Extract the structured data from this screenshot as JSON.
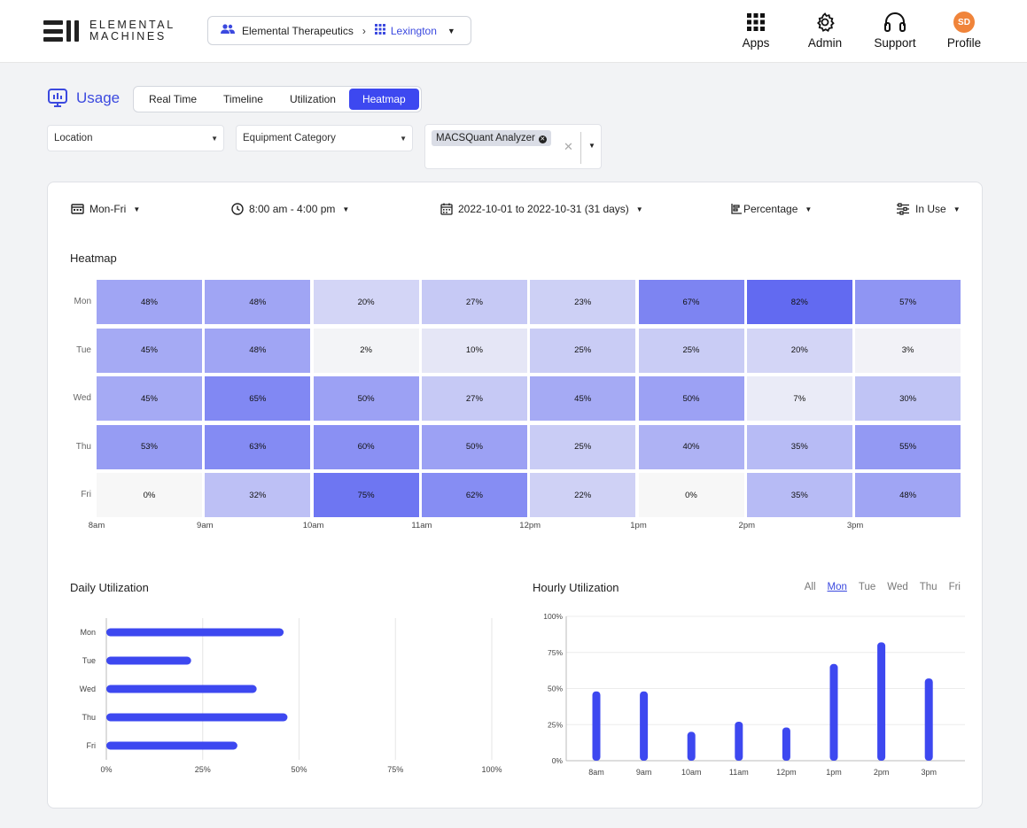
{
  "brand": {
    "line1": "ELEMENTAL",
    "line2": "MACHINES"
  },
  "org_selector": {
    "organization": "Elemental Therapeutics",
    "location": "Lexington"
  },
  "nav": {
    "apps": "Apps",
    "admin": "Admin",
    "support": "Support",
    "profile": "Profile",
    "avatar_initials": "SD"
  },
  "usage": {
    "title": "Usage",
    "tabs": [
      "Real Time",
      "Timeline",
      "Utilization",
      "Heatmap"
    ],
    "active_tab": "Heatmap"
  },
  "filters": {
    "location": "Location",
    "equipment_category": "Equipment Category",
    "selected_equipment": "MACSQuant Analyzer"
  },
  "controls": {
    "days": "Mon-Fri",
    "time_range": "8:00 am - 4:00 pm",
    "date_range": "2022-10-01 to 2022-10-31 (31 days)",
    "metric": "Percentage",
    "state": "In Use"
  },
  "colors": {
    "accent": "#3d48f0",
    "heat_max": "#3d48f0",
    "heat_min": "#f7f7f7"
  },
  "heatmap": {
    "title": "Heatmap",
    "days": [
      "Mon",
      "Tue",
      "Wed",
      "Thu",
      "Fri"
    ],
    "hours": [
      "8am",
      "9am",
      "10am",
      "11am",
      "12pm",
      "1pm",
      "2pm",
      "3pm"
    ],
    "values": [
      [
        48,
        48,
        20,
        27,
        23,
        67,
        82,
        57
      ],
      [
        45,
        48,
        2,
        10,
        25,
        25,
        20,
        3
      ],
      [
        45,
        65,
        50,
        27,
        45,
        50,
        7,
        30
      ],
      [
        53,
        63,
        60,
        50,
        25,
        40,
        35,
        55
      ],
      [
        0,
        32,
        75,
        62,
        22,
        0,
        35,
        48
      ]
    ]
  },
  "daily": {
    "title": "Daily Utilization",
    "x_ticks": [
      "0%",
      "25%",
      "50%",
      "75%",
      "100%"
    ]
  },
  "hourly": {
    "title": "Hourly Utilization",
    "day_filters": [
      "All",
      "Mon",
      "Tue",
      "Wed",
      "Thu",
      "Fri"
    ],
    "active_day": "Mon",
    "y_ticks": [
      "100%",
      "75%",
      "50%",
      "25%",
      "0%"
    ]
  },
  "chart_data": [
    {
      "type": "bar",
      "title": "Daily Utilization",
      "orientation": "horizontal",
      "categories": [
        "Mon",
        "Tue",
        "Wed",
        "Thu",
        "Fri"
      ],
      "values": [
        46,
        22,
        39,
        47,
        34
      ],
      "xlim": [
        0,
        100
      ],
      "grid": true
    },
    {
      "type": "bar",
      "title": "Hourly Utilization",
      "categories": [
        "8am",
        "9am",
        "10am",
        "11am",
        "12pm",
        "1pm",
        "2pm",
        "3pm"
      ],
      "values": [
        48,
        48,
        20,
        27,
        23,
        67,
        82,
        57
      ],
      "ylim": [
        0,
        100
      ],
      "grid": true
    }
  ]
}
